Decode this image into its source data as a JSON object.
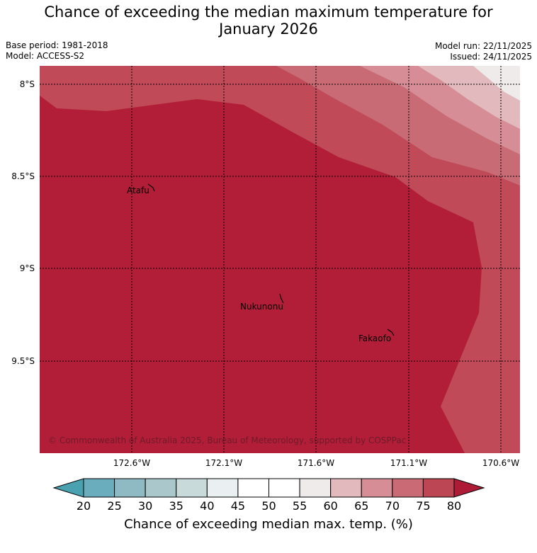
{
  "header": {
    "title_line1": "Chance of exceeding the median maximum temperature for",
    "title_line2": "January 2026",
    "base_period": "Base period: 1981-2018",
    "model": "Model: ACCESS-S2",
    "model_run": "Model run: 22/11/2025",
    "issued": "Issued: 24/11/2025"
  },
  "map": {
    "lat_labels": [
      "8°S",
      "8.5°S",
      "9°S",
      "9.5°S"
    ],
    "lon_labels": [
      "172.6°W",
      "172.1°W",
      "171.6°W",
      "171.1°W",
      "170.6°W"
    ],
    "places": [
      {
        "name": "Atafu"
      },
      {
        "name": "Nukunonu"
      },
      {
        "name": "Fakaofo"
      }
    ],
    "copyright": "© Commonwealth of Australia 2025, Bureau of Meteorology, supported by COSPPac"
  },
  "colorbar": {
    "ticks": [
      "20",
      "25",
      "30",
      "35",
      "40",
      "45",
      "50",
      "55",
      "60",
      "65",
      "70",
      "75",
      "80"
    ],
    "colors": {
      "under": "#4aa1b0",
      "bins": [
        "#6aadbd",
        "#8fbac4",
        "#aac8cc",
        "#c9dadb",
        "#eaeff1",
        "#ffffff",
        "#ffffff",
        "#efebeb",
        "#e2b9bd",
        "#d68d95",
        "#c96a75",
        "#bd4655"
      ],
      "over": "#ad1b37"
    },
    "label": "Chance of exceeding median max. temp. (%)"
  },
  "palette": {
    "c80plus": "#b21e38",
    "c75": "#c04a57",
    "c70": "#c96b75",
    "c65": "#d68d95",
    "c60": "#e2b9bd",
    "c55": "#efebeb"
  }
}
